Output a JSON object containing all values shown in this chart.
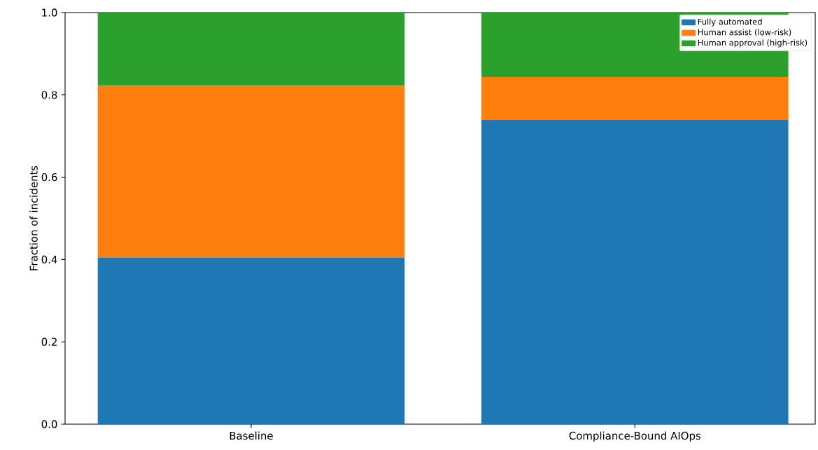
{
  "chart_data": {
    "type": "bar",
    "stacked": true,
    "ylabel": "Fraction of incidents",
    "categories": [
      "Baseline",
      "Compliance-Bound AIOps"
    ],
    "series": [
      {
        "name": "Fully automated",
        "color": "#1f77b4",
        "values": [
          0.405,
          0.739
        ]
      },
      {
        "name": "Human assist (low-risk)",
        "color": "#ff7f0e",
        "values": [
          0.417,
          0.105
        ]
      },
      {
        "name": "Human approval (high-risk)",
        "color": "#2ca02c",
        "values": [
          0.178,
          0.156
        ]
      }
    ],
    "ylim": [
      0,
      1.0
    ],
    "yticks": [
      {
        "value": 0,
        "label": "0.0"
      },
      {
        "value": 0.2,
        "label": "0.2"
      },
      {
        "value": 0.4,
        "label": "0.4"
      },
      {
        "value": 0.6,
        "label": "0.6"
      },
      {
        "value": 0.8,
        "label": "0.8"
      },
      {
        "value": 1.0,
        "label": "1.0"
      }
    ],
    "legend": "top right"
  }
}
